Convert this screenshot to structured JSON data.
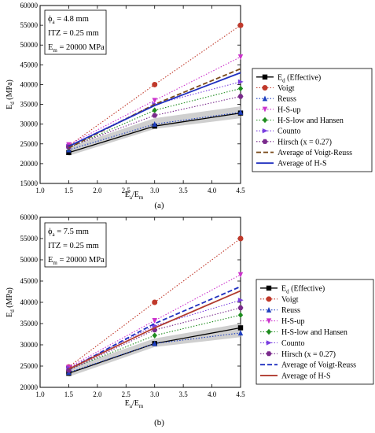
{
  "colors": {
    "effective": "#000000",
    "voigt": "#c0392b",
    "reuss": "#1f3fbf",
    "hs_up": "#cc33cc",
    "hs_low_hansen": "#1e8c1e",
    "counto": "#7a3fe0",
    "hirsch": "#7a2a8c",
    "avg_vr_a": "#7a4a1a",
    "avg_hs_a": "#1f2fbf",
    "avg_vr_b": "#1f2fbf",
    "avg_hs_b": "#b03a2e",
    "band": "#bfbfbf"
  },
  "chart_data": [
    {
      "type": "line",
      "panel_label": "(a)",
      "info": [
        "ϕa = 4.8 mm",
        "ITZ = 0.25 mm",
        "Em = 20000 MPa"
      ],
      "xlabel": "Ea/Em",
      "ylabel": "Ed (MPa)",
      "xlim": [
        1.0,
        4.5
      ],
      "ylim": [
        15000,
        60000
      ],
      "xticks": [
        "1.0",
        "1.5",
        "2.0",
        "2.5",
        "3.0",
        "3.5",
        "4.0",
        "4.5"
      ],
      "yticks": [
        "15000",
        "20000",
        "25000",
        "30000",
        "35000",
        "40000",
        "45000",
        "50000",
        "55000",
        "60000"
      ],
      "x": [
        1.5,
        3.0,
        4.5
      ],
      "band": {
        "lower": [
          22000,
          28800,
          31500
        ],
        "upper": [
          24200,
          31500,
          34500
        ]
      },
      "legend_position": "right",
      "series": [
        {
          "name": "Ed (Effective)",
          "values": [
            22800,
            29500,
            32800
          ]
        },
        {
          "name": "Voigt",
          "values": [
            24500,
            40000,
            55000
          ]
        },
        {
          "name": "Reuss",
          "values": [
            23500,
            30000,
            33000
          ]
        },
        {
          "name": "H-S-up",
          "values": [
            24800,
            36000,
            47000
          ]
        },
        {
          "name": "H-S-low and Hansen",
          "values": [
            24000,
            33500,
            39000
          ]
        },
        {
          "name": "Counto",
          "values": [
            24400,
            35000,
            40700
          ]
        },
        {
          "name": "Hirsch (x = 0.27)",
          "values": [
            24200,
            32200,
            37000
          ]
        },
        {
          "name": "Average of Voigt-Reuss",
          "values": [
            24000,
            35000,
            44000
          ]
        },
        {
          "name": "Average of H-S",
          "values": [
            24400,
            34700,
            43000
          ]
        }
      ]
    },
    {
      "type": "line",
      "panel_label": "(b)",
      "info": [
        "ϕa = 7.5 mm",
        "ITZ = 0.25 mm",
        "Em = 20000 MPa"
      ],
      "xlabel": "Ea/Em",
      "ylabel": "Ed (MPa)",
      "xlim": [
        1.0,
        4.5
      ],
      "ylim": [
        20000,
        60000
      ],
      "xticks": [
        "1.0",
        "1.5",
        "2.0",
        "2.5",
        "3.0",
        "3.5",
        "4.0",
        "4.5"
      ],
      "yticks": [
        "20000",
        "25000",
        "30000",
        "35000",
        "40000",
        "45000",
        "50000",
        "55000",
        "60000"
      ],
      "x": [
        1.5,
        3.0,
        4.5
      ],
      "band": {
        "lower": [
          22500,
          29500,
          31800
        ],
        "upper": [
          24500,
          31500,
          35000
        ]
      },
      "legend_position": "right",
      "series": [
        {
          "name": "Ed (Effective)",
          "values": [
            23300,
            30300,
            34000
          ]
        },
        {
          "name": "Voigt",
          "values": [
            24800,
            40000,
            55000
          ]
        },
        {
          "name": "Reuss",
          "values": [
            23500,
            30300,
            32800
          ]
        },
        {
          "name": "H-S-up",
          "values": [
            24700,
            35700,
            46500
          ]
        },
        {
          "name": "H-S-low and Hansen",
          "values": [
            24200,
            32200,
            37000
          ]
        },
        {
          "name": "Counto",
          "values": [
            24500,
            34500,
            40500
          ]
        },
        {
          "name": "Hirsch (x = 0.27)",
          "values": [
            24000,
            33500,
            38700
          ]
        },
        {
          "name": "Average of Voigt-Reuss",
          "values": [
            24200,
            35000,
            43700
          ]
        },
        {
          "name": "Average of H-S",
          "values": [
            24300,
            34000,
            42700
          ]
        }
      ]
    }
  ]
}
